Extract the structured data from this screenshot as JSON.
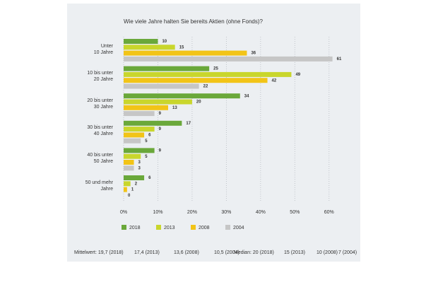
{
  "chart_data": {
    "type": "hbar",
    "title": "Wie viele Jahre halten Sie bereits Aktien (ohne Fonds)?",
    "categories": [
      "Unter\n10 Jahre",
      "10 bis unter\n20 Jahre",
      "20 bis unter\n30 Jahre",
      "30 bis unter\n40 Jahre",
      "40 bis unter\n50 Jahre",
      "50 und mehr\nJahre"
    ],
    "series": [
      {
        "name": "2018",
        "color": "#6aa83a",
        "values": [
          10,
          25,
          34,
          17,
          9,
          6
        ]
      },
      {
        "name": "2013",
        "color": "#c9d62c",
        "values": [
          15,
          49,
          20,
          9,
          5,
          2
        ]
      },
      {
        "name": "2008",
        "color": "#f2c417",
        "values": [
          36,
          42,
          13,
          6,
          3,
          1
        ]
      },
      {
        "name": "2004",
        "color": "#c6c6c6",
        "values": [
          61,
          22,
          9,
          5,
          3,
          0
        ]
      }
    ],
    "xlim": [
      0,
      65
    ],
    "xticks": [
      {
        "value": 0,
        "label": "0%"
      },
      {
        "value": 10,
        "label": "10%"
      },
      {
        "value": 20,
        "label": "20%"
      },
      {
        "value": 30,
        "label": "30%"
      },
      {
        "value": 40,
        "label": "40%"
      },
      {
        "value": 50,
        "label": "50%"
      },
      {
        "value": 60,
        "label": "60%"
      }
    ],
    "grid": true,
    "footer": [
      "Mittelwert: 19,7 (2018)",
      "17,4 (2013)",
      "13,6 (2008)",
      "10,5 (2004)",
      "Median: 20 (2018)",
      "15 (2013)",
      "10 (2008)",
      "7 (2004)"
    ]
  }
}
